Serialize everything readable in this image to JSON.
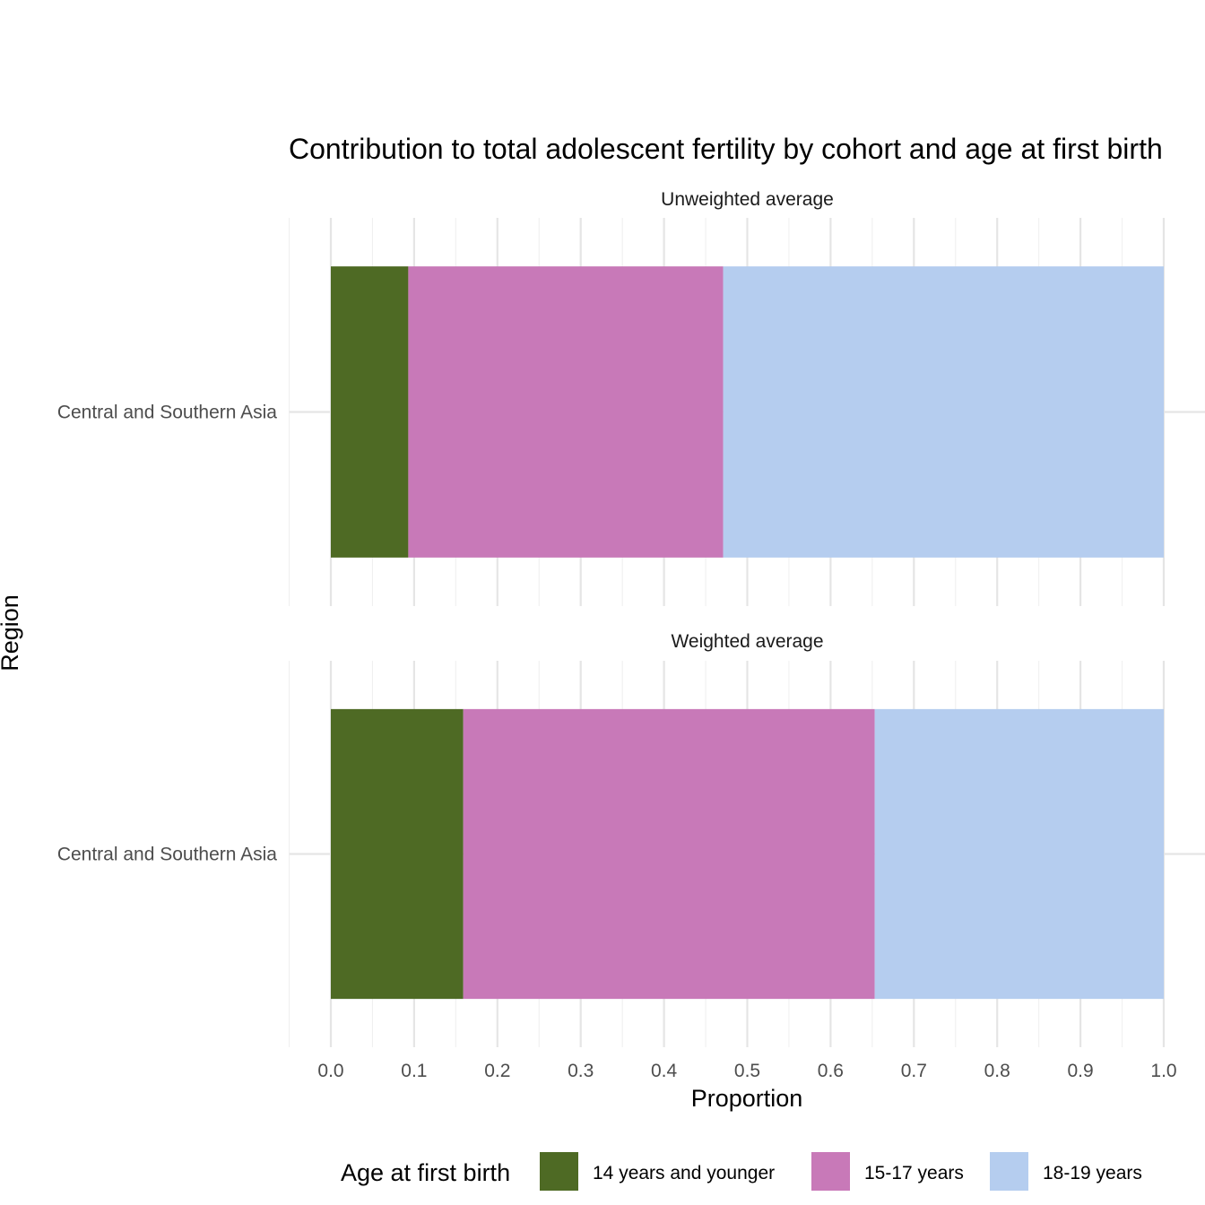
{
  "chart_data": {
    "type": "bar",
    "orientation": "horizontal",
    "stacked": true,
    "title": "Contribution to total adolescent fertility by cohort and age at first birth",
    "xlabel": "Proportion",
    "ylabel": "Region",
    "xlim": [
      -0.05,
      1.05
    ],
    "xticks": [
      "0.0",
      "0.1",
      "0.2",
      "0.3",
      "0.4",
      "0.5",
      "0.6",
      "0.7",
      "0.8",
      "0.9",
      "1.0"
    ],
    "grid": true,
    "legend": {
      "title": "Age at first birth",
      "position": "bottom",
      "entries": [
        {
          "label": "14 years and younger",
          "color": "#4E6A24"
        },
        {
          "label": "15-17 years",
          "color": "#C879B8"
        },
        {
          "label": "18-19 years",
          "color": "#B5CDEF"
        }
      ]
    },
    "panels": [
      {
        "strip": "Unweighted average",
        "categories": [
          "Central and Southern Asia"
        ],
        "series": [
          {
            "name": "14 years and younger",
            "values": [
              0.093
            ]
          },
          {
            "name": "15-17 years",
            "values": [
              0.378
            ]
          },
          {
            "name": "18-19 years",
            "values": [
              0.529
            ]
          }
        ]
      },
      {
        "strip": "Weighted average",
        "categories": [
          "Central and Southern Asia"
        ],
        "series": [
          {
            "name": "14 years and younger",
            "values": [
              0.159
            ]
          },
          {
            "name": "15-17 years",
            "values": [
              0.494
            ]
          },
          {
            "name": "18-19 years",
            "values": [
              0.347
            ]
          }
        ]
      }
    ]
  }
}
